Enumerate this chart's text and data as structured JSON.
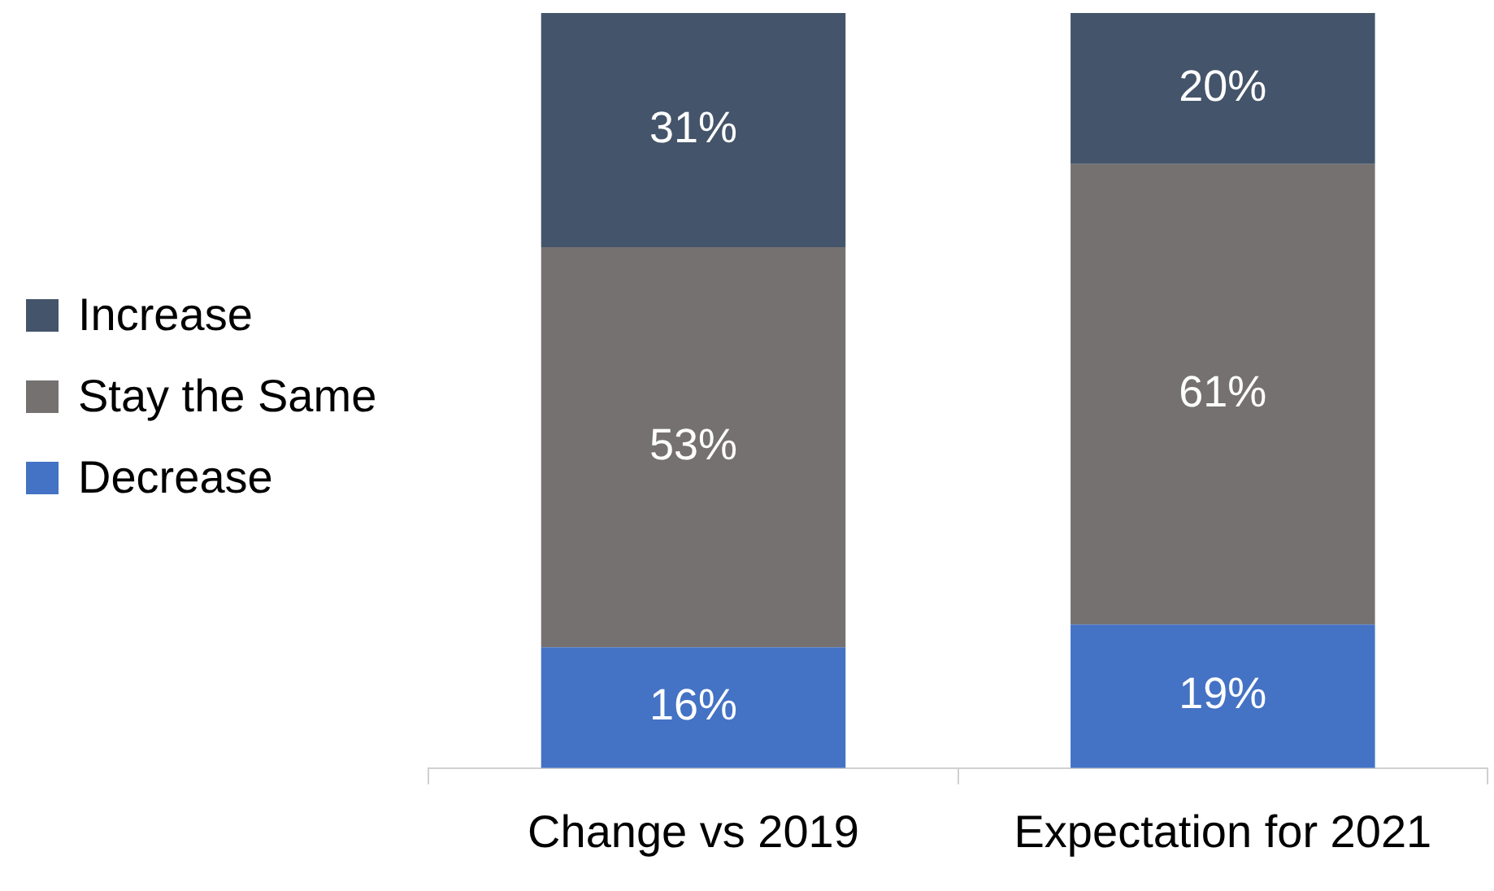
{
  "chart_data": {
    "type": "bar",
    "stacked": true,
    "categories": [
      "Change vs 2019",
      "Expectation for 2021"
    ],
    "series": [
      {
        "name": "Decrease",
        "color": "#4472c4",
        "values": [
          16,
          19
        ],
        "value_labels": [
          "16%",
          "19%"
        ]
      },
      {
        "name": "Stay the Same",
        "color": "#767171",
        "values": [
          53,
          61
        ],
        "value_labels": [
          "53%",
          "61%"
        ]
      },
      {
        "name": "Increase",
        "color": "#44546a",
        "values": [
          31,
          20
        ],
        "value_labels": [
          "31%",
          "20%"
        ]
      }
    ],
    "legend": "left",
    "grid": false,
    "relative": false
  }
}
